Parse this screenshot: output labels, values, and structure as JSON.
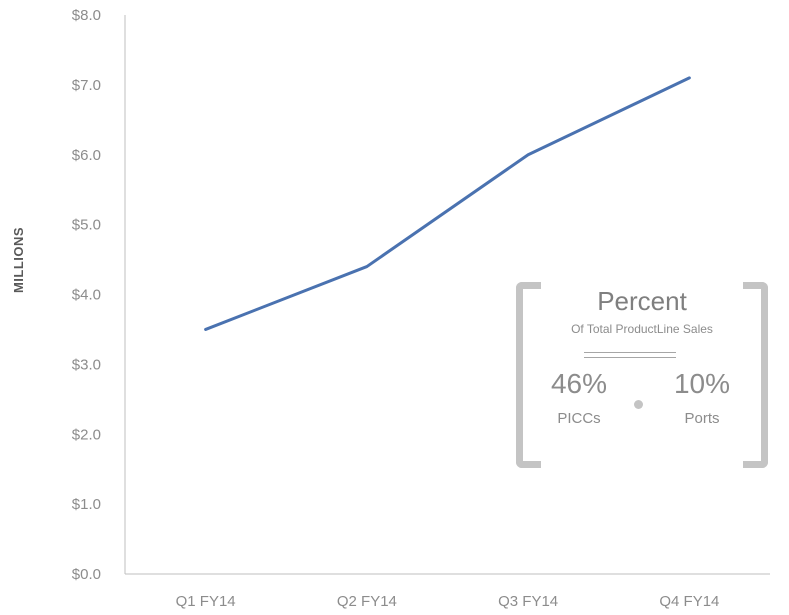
{
  "chart_data": {
    "type": "line",
    "title": "",
    "xlabel": "",
    "ylabel": "MILLIONS",
    "categories": [
      "Q1 FY14",
      "Q2 FY14",
      "Q3 FY14",
      "Q4 FY14"
    ],
    "series": [
      {
        "values": [
          3.5,
          4.4,
          6.0,
          7.1
        ],
        "color": "#4a72b0"
      }
    ],
    "ylim": [
      0,
      8
    ],
    "yticks": [
      0,
      1,
      2,
      3,
      4,
      5,
      6,
      7,
      8
    ],
    "ytick_labels": [
      "$0.0",
      "$1.0",
      "$2.0",
      "$3.0",
      "$4.0",
      "$5.0",
      "$6.0",
      "$7.0",
      "$8.0"
    ],
    "grid": false,
    "legend": "none"
  },
  "callout": {
    "title": "Percent",
    "subtitle": "Of Total ProductLine Sales",
    "left_value": "46%",
    "left_label": "PICCs",
    "right_value": "10%",
    "right_label": "Ports"
  },
  "colors": {
    "line": "#4a72b0",
    "axis": "#bfbfbf",
    "text": "#8c8c8c",
    "bracket": "#c4c4c4"
  }
}
